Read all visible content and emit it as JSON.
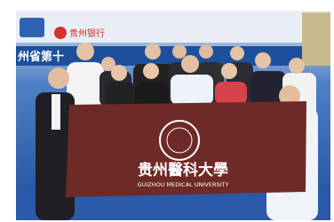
{
  "photo": {
    "sponsor_logo": "贵州银行",
    "banner_text": "州省第十",
    "flag": {
      "title": "贵州醫科大學",
      "subtitle": "GUIZHOU MEDICAL UNIVERSITY"
    }
  }
}
